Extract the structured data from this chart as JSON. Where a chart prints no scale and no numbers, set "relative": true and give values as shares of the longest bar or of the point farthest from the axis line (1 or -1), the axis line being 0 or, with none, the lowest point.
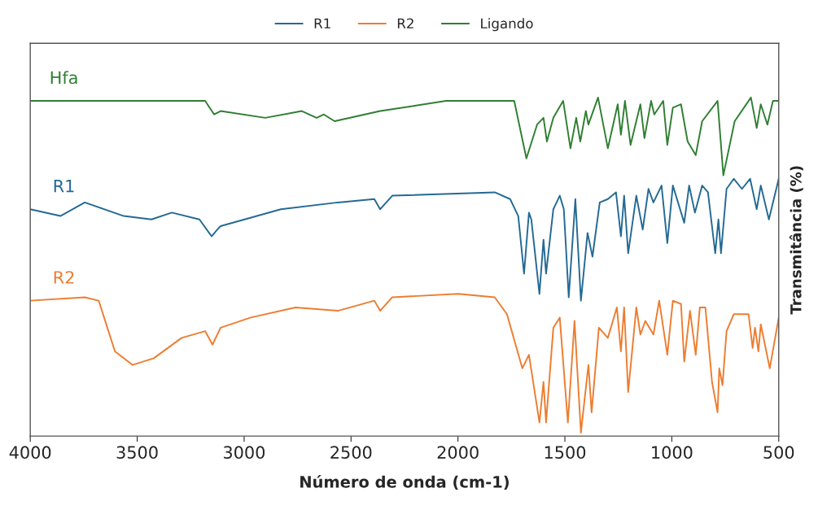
{
  "chart_data": {
    "type": "line",
    "relative": true,
    "xlabel": "Número de onda (cm-1)",
    "ylabel": "Transmitância (%)",
    "xlim": [
      4000,
      500
    ],
    "xticks": [
      4000,
      3500,
      3000,
      2500,
      2000,
      1500,
      1000,
      500
    ],
    "grid": false,
    "legend": "top",
    "marker": "none",
    "line_style": "solid",
    "annotations": [
      "Hfa",
      "R1",
      "R2"
    ],
    "series": [
      {
        "name": "R1",
        "color": "#246a94",
        "x": [
          4000,
          3859,
          3745,
          3563,
          3433,
          3338,
          3209,
          3152,
          3125,
          3110,
          2828,
          2562,
          2391,
          2364,
          2307,
          1828,
          1756,
          1718,
          1691,
          1668,
          1657,
          1619,
          1600,
          1588,
          1554,
          1524,
          1505,
          1482,
          1451,
          1425,
          1394,
          1371,
          1337,
          1299,
          1261,
          1238,
          1223,
          1204,
          1166,
          1136,
          1109,
          1086,
          1048,
          1021,
          995,
          942,
          919,
          892,
          858,
          831,
          797,
          782,
          770,
          744,
          710,
          672,
          634,
          603,
          584,
          546,
          500
        ],
        "values": [
          0.67,
          0.65,
          0.69,
          0.65,
          0.64,
          0.66,
          0.64,
          0.59,
          0.61,
          0.62,
          0.67,
          0.69,
          0.7,
          0.67,
          0.71,
          0.72,
          0.7,
          0.65,
          0.48,
          0.66,
          0.64,
          0.42,
          0.58,
          0.48,
          0.67,
          0.71,
          0.67,
          0.41,
          0.7,
          0.4,
          0.6,
          0.53,
          0.69,
          0.7,
          0.72,
          0.59,
          0.71,
          0.54,
          0.71,
          0.61,
          0.73,
          0.69,
          0.74,
          0.57,
          0.74,
          0.63,
          0.74,
          0.66,
          0.74,
          0.72,
          0.54,
          0.64,
          0.54,
          0.73,
          0.76,
          0.73,
          0.76,
          0.67,
          0.74,
          0.64,
          0.76
        ]
      },
      {
        "name": "R2",
        "color": "#ed7d31",
        "x": [
          4000,
          3745,
          3680,
          3604,
          3521,
          3422,
          3292,
          3182,
          3148,
          3110,
          2969,
          2760,
          2562,
          2391,
          2364,
          2307,
          1999,
          1828,
          1771,
          1699,
          1668,
          1619,
          1600,
          1588,
          1554,
          1524,
          1486,
          1455,
          1425,
          1390,
          1375,
          1341,
          1299,
          1257,
          1238,
          1223,
          1204,
          1166,
          1147,
          1124,
          1086,
          1059,
          1021,
          995,
          957,
          942,
          915,
          888,
          869,
          843,
          812,
          786,
          778,
          763,
          744,
          710,
          641,
          622,
          611,
          595,
          584,
          542,
          500
        ],
        "values": [
          0.4,
          0.41,
          0.4,
          0.25,
          0.21,
          0.23,
          0.29,
          0.31,
          0.27,
          0.32,
          0.35,
          0.38,
          0.37,
          0.4,
          0.37,
          0.41,
          0.42,
          0.41,
          0.36,
          0.2,
          0.24,
          0.04,
          0.16,
          0.04,
          0.32,
          0.35,
          0.04,
          0.34,
          0.01,
          0.21,
          0.07,
          0.32,
          0.29,
          0.38,
          0.25,
          0.38,
          0.13,
          0.38,
          0.3,
          0.34,
          0.3,
          0.4,
          0.24,
          0.4,
          0.39,
          0.22,
          0.37,
          0.24,
          0.38,
          0.38,
          0.16,
          0.07,
          0.2,
          0.15,
          0.31,
          0.36,
          0.36,
          0.26,
          0.32,
          0.25,
          0.33,
          0.2,
          0.35
        ]
      },
      {
        "name": "Ligando",
        "color": "#2f7f32",
        "x": [
          4000,
          3182,
          3140,
          3110,
          2901,
          2730,
          2661,
          2627,
          2577,
          2364,
          2056,
          1828,
          1737,
          1680,
          1630,
          1600,
          1584,
          1554,
          1508,
          1474,
          1447,
          1428,
          1402,
          1390,
          1345,
          1299,
          1253,
          1238,
          1219,
          1193,
          1147,
          1128,
          1097,
          1082,
          1040,
          1021,
          995,
          957,
          926,
          888,
          858,
          786,
          759,
          706,
          630,
          603,
          584,
          553,
          527,
          500
        ],
        "values": [
          0.99,
          0.99,
          0.95,
          0.96,
          0.94,
          0.96,
          0.94,
          0.95,
          0.93,
          0.96,
          0.99,
          0.99,
          0.99,
          0.82,
          0.92,
          0.94,
          0.87,
          0.94,
          0.99,
          0.85,
          0.94,
          0.87,
          0.96,
          0.92,
          1.0,
          0.85,
          0.98,
          0.89,
          0.99,
          0.86,
          0.98,
          0.88,
          0.99,
          0.95,
          0.99,
          0.86,
          0.97,
          0.98,
          0.87,
          0.83,
          0.93,
          0.99,
          0.77,
          0.93,
          1.0,
          0.91,
          0.98,
          0.92,
          0.99,
          0.99
        ]
      }
    ]
  }
}
